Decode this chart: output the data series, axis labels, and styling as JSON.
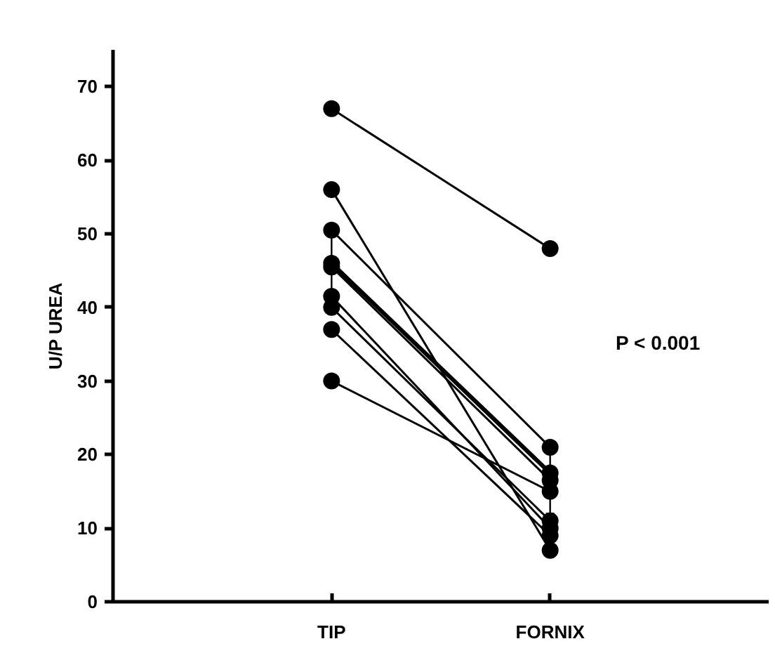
{
  "chart_data": {
    "type": "line",
    "ylabel": "U/P UREA",
    "categories": [
      "TIP",
      "FORNIX"
    ],
    "series": [
      {
        "color": "#000000",
        "values": [
          67,
          48
        ]
      },
      {
        "color": "#000000",
        "values": [
          56,
          7
        ]
      },
      {
        "color": "#000000",
        "values": [
          50.5,
          21
        ]
      },
      {
        "color": "#000000",
        "values": [
          45.5,
          16.5
        ]
      },
      {
        "color": "#000000",
        "values": [
          41.5,
          10
        ]
      },
      {
        "color": "#000000",
        "values": [
          40,
          11
        ]
      },
      {
        "color": "#000000",
        "values": [
          37,
          9
        ]
      },
      {
        "color": "#000000",
        "values": [
          30,
          15
        ]
      },
      {
        "color": "#000000",
        "values": [
          46,
          17.5
        ],
        "errors": [
          [
            42,
            50
          ],
          [
            12,
            21.5
          ]
        ]
      }
    ],
    "ylim": [
      0,
      75
    ],
    "yticks": [
      0,
      10,
      20,
      30,
      40,
      50,
      60,
      70
    ],
    "grid": false,
    "marker": "circle",
    "line_style": "solid",
    "annotations": [
      "P < 0.001"
    ]
  }
}
